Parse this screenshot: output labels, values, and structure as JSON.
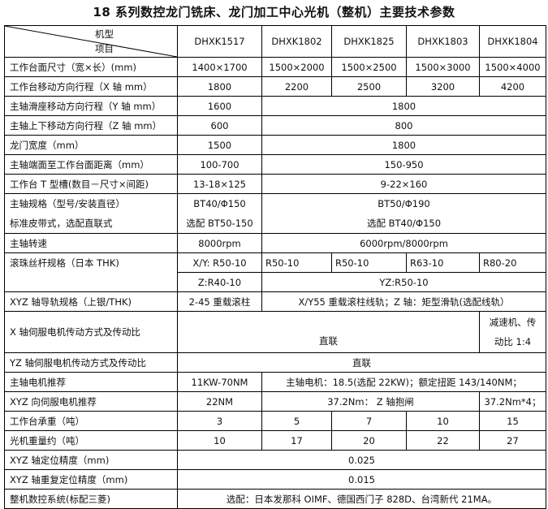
{
  "title": "18 系列数控龙门铣床、龙门加工中心光机（整机）主要技术参数",
  "header": {
    "corner_top": "机型",
    "corner_bottom": "项目",
    "models": [
      "DHXK1517",
      "DHXK1802",
      "DHXK1825",
      "DHXK1803",
      "DHXK1804"
    ]
  },
  "rows": [
    {
      "label": "工作台面尺寸（宽×长）(mm)",
      "cells": [
        {
          "text": "1400×1700"
        },
        {
          "text": "1500×2000"
        },
        {
          "text": "1500×2500"
        },
        {
          "text": "1500×3000"
        },
        {
          "text": "1500×4000"
        }
      ]
    },
    {
      "label": "工作台移动方向行程（X 轴 mm）",
      "cells": [
        {
          "text": "1800"
        },
        {
          "text": "2200"
        },
        {
          "text": "2500"
        },
        {
          "text": "3200"
        },
        {
          "text": "4200"
        }
      ]
    },
    {
      "label": "主轴滑座移动方向行程（Y 轴 mm）",
      "cells": [
        {
          "text": "1600"
        },
        {
          "text": "1800",
          "colspan": 4
        }
      ]
    },
    {
      "label": "主轴上下移动方向行程（Z 轴 mm）",
      "cells": [
        {
          "text": "600"
        },
        {
          "text": "800",
          "colspan": 4
        }
      ]
    },
    {
      "label": "龙门宽度（mm）",
      "cells": [
        {
          "text": "1500"
        },
        {
          "text": "1800",
          "colspan": 4
        }
      ]
    },
    {
      "label": "主轴端面至工作台面距离（mm）",
      "cells": [
        {
          "text": "100-700"
        },
        {
          "text": "150-950",
          "colspan": 4
        }
      ]
    },
    {
      "label": "工作台 T 型槽(数目－尺寸×间距)",
      "cells": [
        {
          "text": "13-18×125"
        },
        {
          "text": "9-22×160",
          "colspan": 4
        }
      ]
    },
    {
      "label": "主轴规格（型号/安装直径）",
      "label2": "标准皮带式，选配直联式",
      "cells": [
        {
          "text": "BT40/Φ150",
          "text2": "选配 BT50-150"
        },
        {
          "text": "BT50/Φ190",
          "text2": "选配 BT40/Φ150",
          "colspan": 4
        }
      ]
    },
    {
      "label": "主轴转速",
      "cells": [
        {
          "text": "8000rpm"
        },
        {
          "text": "6000rpm/8000rpm",
          "colspan": 4
        }
      ]
    },
    {
      "label": "滚珠丝杆规格（日本 THK)",
      "rowspan": 2,
      "cells": [
        {
          "text": "X/Y: R50-10"
        },
        {
          "text": "R50-10",
          "align": "left"
        },
        {
          "text": "R50-10",
          "align": "left"
        },
        {
          "text": "R63-10",
          "align": "left"
        },
        {
          "text": "R80-20",
          "align": "left"
        }
      ]
    },
    {
      "cells": [
        {
          "text": "Z:R40-10"
        },
        {
          "text": "YZ:R50-10",
          "colspan": 4
        }
      ]
    },
    {
      "label": "XYZ 轴导轨规格（上银/THK)",
      "cells": [
        {
          "text": "2-45 重载滚柱"
        },
        {
          "text": "X/Y55 重载滚柱线轨；Z 轴：矩型滑轨(选配线轨）",
          "colspan": 4
        }
      ]
    },
    {
      "label": "X 轴伺服电机传动方式及传动比",
      "tall": true,
      "cells": [
        {
          "text": "直联",
          "colspan": 4,
          "low": true
        },
        {
          "text": "减速机、传",
          "text2": "动比 1:4"
        }
      ]
    },
    {
      "label": "YZ 轴伺服电机传动方式及传动比",
      "cells": [
        {
          "text": "直联",
          "colspan": 5
        }
      ]
    },
    {
      "label": "主轴电机推荐",
      "cells": [
        {
          "text": "11KW-70NM"
        },
        {
          "text": "主轴电机：18.5(选配 22KW)；额定扭距 143/140NM；",
          "colspan": 4
        }
      ]
    },
    {
      "label": "XYZ 向伺服电机推荐",
      "cells": [
        {
          "text": "22NM"
        },
        {
          "text": "37.2Nm： Z 轴抱闸",
          "colspan": 3
        },
        {
          "text": "37.2Nm*4；"
        }
      ]
    },
    {
      "label": "工作台承重（吨）",
      "cells": [
        {
          "text": "3"
        },
        {
          "text": "5"
        },
        {
          "text": "7"
        },
        {
          "text": "10"
        },
        {
          "text": "15"
        }
      ]
    },
    {
      "label": "光机重量约（吨）",
      "cells": [
        {
          "text": "10"
        },
        {
          "text": "17"
        },
        {
          "text": "20"
        },
        {
          "text": "22"
        },
        {
          "text": "27"
        }
      ]
    },
    {
      "label": "XYZ 轴定位精度（mm)",
      "cells": [
        {
          "text": "0.025",
          "colspan": 5
        }
      ]
    },
    {
      "label": "XYZ 轴重复定位精度（mm)",
      "cells": [
        {
          "text": "0.015",
          "colspan": 5
        }
      ]
    },
    {
      "label": "整机数控系统(标配三菱)",
      "cells": [
        {
          "text": "选配：日本发那科 OIMF、德国西门子 828D、台湾新代 21MA。",
          "colspan": 5
        }
      ]
    }
  ]
}
